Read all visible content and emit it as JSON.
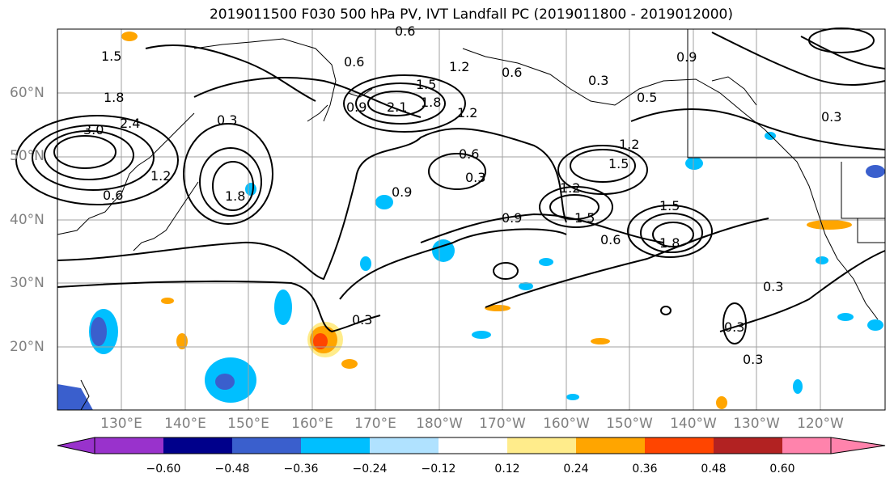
{
  "title": "2019011500 F030 500 hPa PV, IVT Landfall PC (2019011800 - 2019012000)",
  "lat_labels": [
    "60°N",
    "50°N",
    "40°N",
    "30°N",
    "20°N"
  ],
  "lon_labels": [
    "130°E",
    "140°E",
    "150°E",
    "160°E",
    "170°E",
    "180°W",
    "170°W",
    "160°W",
    "150°W",
    "140°W",
    "130°W",
    "120°W"
  ],
  "colorbar": {
    "ticks": [
      "−0.60",
      "−0.48",
      "−0.36",
      "−0.24",
      "−0.12",
      "0.12",
      "0.24",
      "0.36",
      "0.48",
      "0.60"
    ],
    "colors": [
      "#9932cc",
      "#00008b",
      "#3a5fcd",
      "#00bfff",
      "#b0e2ff",
      "#ffffff",
      "#ffec8b",
      "#ffa500",
      "#ff4500",
      "#b22222",
      "#ff83ac"
    ]
  },
  "contour_labels": [
    "0.6",
    "1.5",
    "0.6",
    "1.2",
    "0.6",
    "0.3",
    "0.9",
    "2.1",
    "1.8",
    "1.5",
    "1.2",
    "1.8",
    "0.9",
    "0.3",
    "3.0",
    "2.4",
    "1.2",
    "0.6",
    "1.8",
    "0.6",
    "0.3",
    "1.2",
    "1.5",
    "0.9",
    "0.6",
    "1.2",
    "1.5",
    "1.8",
    "0.3",
    "0.3",
    "0.3",
    "0.9",
    "0.5",
    "1.5",
    "0.3",
    "0.3"
  ]
}
